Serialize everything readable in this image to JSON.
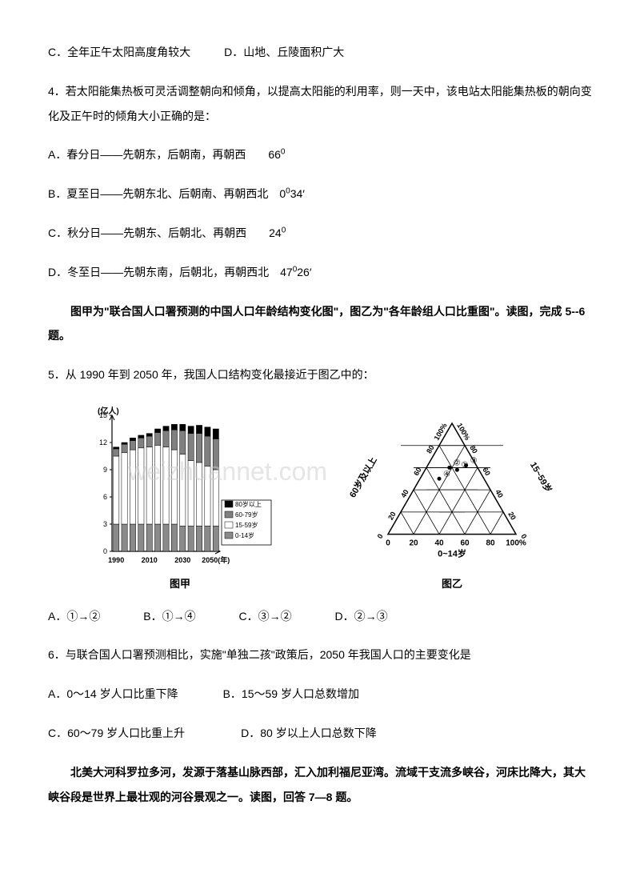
{
  "line_cd": "C．全年正午太阳高度角较大　　　D．山地、丘陵面积广大",
  "q4_stem": "4．若太阳能集热板可灵活调整朝向和倾角，以提高太阳能的利用率，则一天中，该电站太阳能集热板的朝向变化及正午时的倾角大小正确的是：",
  "q4_a_pre": "A．春分日——先朝东，后朝南，再朝西　　66",
  "q4_a_sup": "0",
  "q4_b_pre": "B．夏至日——先朝东北、后朝南、再朝西北　0",
  "q4_b_sup": "0",
  "q4_b_post": "34′",
  "q4_c_pre": "C．秋分日——先朝东、后朝北、再朝西　　24",
  "q4_c_sup": "0",
  "q4_d_pre": "D．冬至日——先朝东南，后朝北，再朝西北　47",
  "q4_d_sup": "0",
  "q4_d_post": "26′",
  "intro56": "　　图甲为\"联合国人口署预测的中国人口年龄结构变化图\"，图乙为\"各年龄组人口比重图\"。读图，完成 5--6 题。",
  "q5_stem": "5．从 1990 年到 2050 年，我国人口结构变化最接近于图乙中的：",
  "watermark": "weizhuannet.com",
  "figA": {
    "label": "图甲",
    "y_label": "(亿人)",
    "y_ticks": [
      0,
      3,
      6,
      9,
      12,
      15
    ],
    "x_ticks": [
      "1990",
      "2010",
      "2030",
      "2050(年)"
    ],
    "legend": [
      "80岁以上",
      "60-79岁",
      "15-59岁",
      "0-14岁"
    ],
    "series_colors": [
      "#000000",
      "#808080",
      "#ffffff",
      "#8a8a8a"
    ],
    "background": "#ffffff",
    "axis_color": "#000000",
    "bar_count": 13,
    "totals": [
      11.5,
      12,
      12.5,
      12.8,
      13,
      13.5,
      13.8,
      14,
      14,
      13.8,
      13.9,
      13.7,
      13.5
    ],
    "seg_80plus": [
      0.2,
      0.2,
      0.3,
      0.3,
      0.3,
      0.4,
      0.5,
      0.6,
      0.7,
      0.8,
      0.9,
      1.0,
      1.1
    ],
    "seg_6079": [
      0.8,
      0.9,
      1.0,
      1.1,
      1.2,
      1.4,
      1.8,
      2.2,
      2.6,
      3.0,
      3.2,
      3.3,
      3.4
    ],
    "seg_1559": [
      7.5,
      7.9,
      8.2,
      8.4,
      8.5,
      8.7,
      8.5,
      8.2,
      7.9,
      7.2,
      7.0,
      6.6,
      6.2
    ],
    "seg_014": [
      3.0,
      3.0,
      3.0,
      3.0,
      3.0,
      3.0,
      3.0,
      3.0,
      2.8,
      2.8,
      2.8,
      2.8,
      2.8
    ]
  },
  "figB": {
    "label": "图乙",
    "axis_bottom": "0~14岁",
    "axis_right": "15~59岁",
    "axis_left": "60岁及以上",
    "ticks": [
      "0",
      "20",
      "40",
      "60",
      "80",
      "100%"
    ],
    "points": [
      {
        "id": "①",
        "a014": 25,
        "a1559": 58,
        "a60": 17
      },
      {
        "id": "②",
        "a014": 18,
        "a1559": 60,
        "a60": 22
      },
      {
        "id": "③",
        "a014": 30,
        "a1559": 62,
        "a60": 8
      },
      {
        "id": "④",
        "a014": 15,
        "a1559": 50,
        "a60": 35
      }
    ],
    "background": "#ffffff",
    "line_color": "#000000"
  },
  "q5_opts": {
    "a": "A．①→②",
    "b": "B．①→④",
    "c": "C．③→②",
    "d": "D．②→③"
  },
  "q6_stem": "6．与联合国人口署预测相比，实施\"单独二孩\"政策后，2050 年我国人口的主要变化是",
  "q6_a": "A．0～14 岁人口比重下降",
  "q6_b": "B．15～59 岁人口总数增加",
  "q6_c": "C．60～79 岁人口比重上升",
  "q6_d": "D．80 岁以上人口总数下降",
  "intro78": "　　北美大河科罗拉多河，发源于落基山脉西部，汇入加利福尼亚湾。流域干支流多峡谷，河床比降大，其大峡谷段是世界上最壮观的河谷景观之一。读图，回答 7—8 题。"
}
